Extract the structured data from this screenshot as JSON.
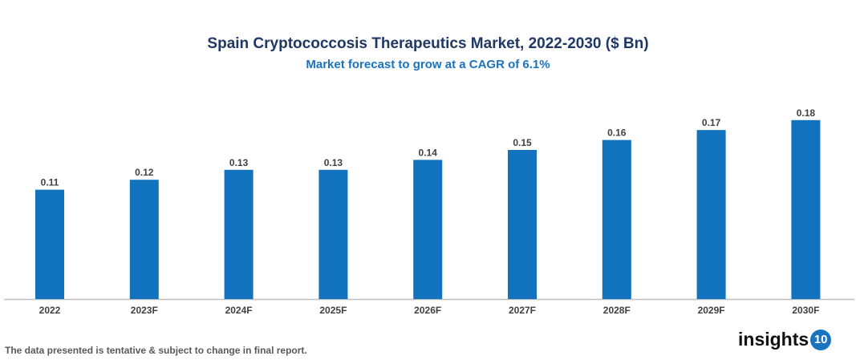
{
  "chart_data": {
    "type": "bar",
    "title": "Spain Cryptococcosis Therapeutics Market, 2022-2030 ($ Bn)",
    "subtitle": "Market forecast to grow at a CAGR of 6.1%",
    "categories": [
      "2022",
      "2023F",
      "2024F",
      "2025F",
      "2026F",
      "2027F",
      "2028F",
      "2029F",
      "2030F"
    ],
    "values": [
      0.11,
      0.12,
      0.13,
      0.13,
      0.14,
      0.15,
      0.16,
      0.17,
      0.18
    ],
    "data_labels": [
      "0.11",
      "0.12",
      "0.13",
      "0.13",
      "0.14",
      "0.15",
      "0.16",
      "0.17",
      "0.18"
    ],
    "xlabel": "",
    "ylabel": "",
    "ylim": [
      0,
      0.2
    ],
    "grid": false,
    "bar_color": "#1172be"
  },
  "footer": {
    "note": "The data presented is tentative & subject to change in final report."
  },
  "logo": {
    "text": "insights",
    "badge": "10"
  }
}
